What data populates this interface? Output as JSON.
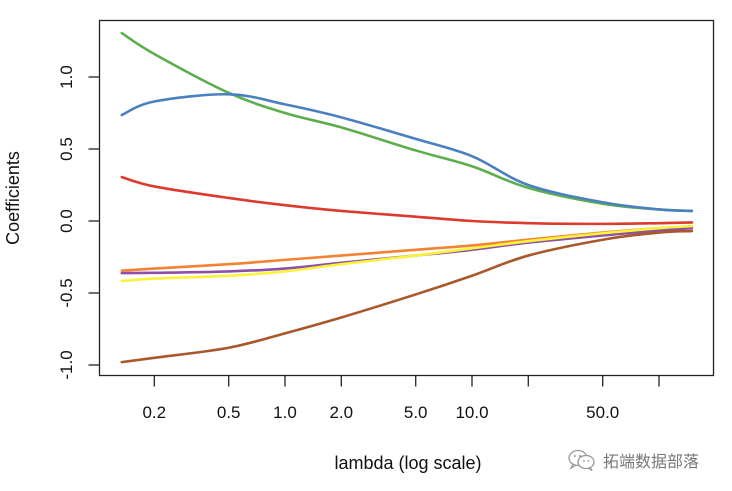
{
  "chart_data": {
    "type": "line",
    "title": "",
    "xlabel": "lambda (log scale)",
    "ylabel": "Coefficients",
    "xscale": "log",
    "xlim": [
      0.12,
      170
    ],
    "ylim": [
      -1.05,
      1.38
    ],
    "x_ticks": [
      {
        "value": 0.2,
        "label": "0.2"
      },
      {
        "value": 0.5,
        "label": "0.5"
      },
      {
        "value": 1,
        "label": "1.0"
      },
      {
        "value": 2,
        "label": "2.0"
      },
      {
        "value": 5,
        "label": "5.0"
      },
      {
        "value": 10,
        "label": "10.0"
      },
      {
        "value": 20,
        "label": ""
      },
      {
        "value": 50,
        "label": "50.0"
      },
      {
        "value": 100,
        "label": ""
      }
    ],
    "y_ticks": [
      {
        "value": -1.0,
        "label": "-1.0"
      },
      {
        "value": -0.5,
        "label": "-0.5"
      },
      {
        "value": 0.0,
        "label": "0.0"
      },
      {
        "value": 0.5,
        "label": "0.5"
      },
      {
        "value": 1.0,
        "label": "1.0"
      }
    ],
    "grid": false,
    "legend": "none",
    "x": [
      0.134,
      0.2,
      0.5,
      1,
      2,
      5,
      10,
      20,
      50,
      100,
      150
    ],
    "series": [
      {
        "name": "green",
        "color": "#5cae4c",
        "values": [
          1.305,
          1.16,
          0.89,
          0.75,
          0.65,
          0.49,
          0.38,
          0.23,
          0.12,
          0.08,
          0.07
        ]
      },
      {
        "name": "blue",
        "color": "#4a80c0",
        "values": [
          0.736,
          0.83,
          0.88,
          0.81,
          0.72,
          0.57,
          0.45,
          0.25,
          0.13,
          0.08,
          0.07
        ]
      },
      {
        "name": "red",
        "color": "#dd3a2e",
        "values": [
          0.305,
          0.24,
          0.16,
          0.11,
          0.07,
          0.03,
          0.0,
          -0.015,
          -0.02,
          -0.015,
          -0.01
        ]
      },
      {
        "name": "orange",
        "color": "#f38232",
        "values": [
          -0.345,
          -0.33,
          -0.3,
          -0.27,
          -0.24,
          -0.2,
          -0.17,
          -0.13,
          -0.08,
          -0.05,
          -0.04
        ]
      },
      {
        "name": "purple",
        "color": "#8e4fa6",
        "values": [
          -0.362,
          -0.36,
          -0.35,
          -0.33,
          -0.29,
          -0.24,
          -0.2,
          -0.15,
          -0.1,
          -0.065,
          -0.05
        ]
      },
      {
        "name": "yellow",
        "color": "#fbf23a",
        "values": [
          -0.417,
          -0.4,
          -0.38,
          -0.35,
          -0.3,
          -0.24,
          -0.19,
          -0.14,
          -0.085,
          -0.05,
          -0.035
        ]
      },
      {
        "name": "brown",
        "color": "#a9582c",
        "values": [
          -0.98,
          -0.95,
          -0.88,
          -0.78,
          -0.67,
          -0.51,
          -0.38,
          -0.24,
          -0.13,
          -0.08,
          -0.07
        ]
      }
    ]
  },
  "watermark": {
    "icon": "wechat-icon",
    "text": "拓端数据部落"
  }
}
